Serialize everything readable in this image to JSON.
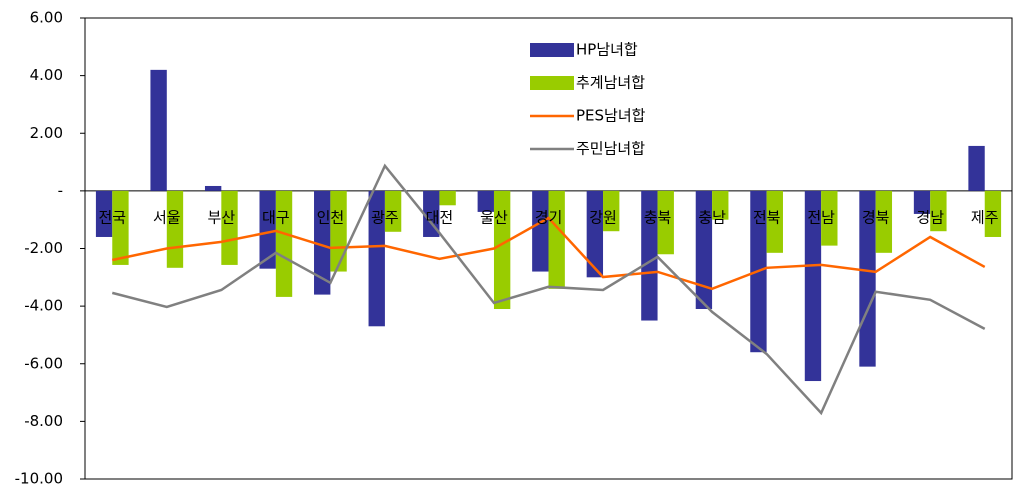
{
  "chart_data": {
    "type": "bar",
    "categories": [
      "전국",
      "서울",
      "부산",
      "대구",
      "인천",
      "광주",
      "대전",
      "울산",
      "경기",
      "강원",
      "충북",
      "충남",
      "전북",
      "전남",
      "경북",
      "경남",
      "제주"
    ],
    "series": [
      {
        "name": "HP남녀합",
        "type": "bar",
        "color": "#333399",
        "values": [
          -1.6,
          4.2,
          0.17,
          -2.7,
          -3.6,
          -4.7,
          -1.6,
          -0.73,
          -2.8,
          -3.0,
          -4.5,
          -4.1,
          -5.6,
          -6.6,
          -6.1,
          -0.8,
          1.56
        ]
      },
      {
        "name": "추계남녀합",
        "type": "bar",
        "color": "#99cc00",
        "values": [
          -2.57,
          -2.67,
          -2.57,
          -3.68,
          -2.8,
          -1.42,
          -0.5,
          -4.1,
          -3.4,
          -1.4,
          -2.2,
          -1.0,
          -2.15,
          -1.9,
          -2.15,
          -1.4,
          -1.6
        ]
      },
      {
        "name": "PES남녀합",
        "type": "line",
        "color": "#ff6600",
        "values": [
          -2.4,
          -2.0,
          -1.77,
          -1.39,
          -1.98,
          -1.91,
          -2.36,
          -2.0,
          -0.94,
          -2.99,
          -2.81,
          -3.4,
          -2.67,
          -2.57,
          -2.81,
          -1.6,
          -2.64
        ]
      },
      {
        "name": "주민남녀합",
        "type": "line",
        "color": "#808080",
        "values": [
          -3.54,
          -4.03,
          -3.44,
          -2.15,
          -3.19,
          0.87,
          -1.46,
          -3.89,
          -3.33,
          -3.44,
          -2.29,
          -4.2,
          -5.66,
          -7.71,
          -3.5,
          -3.78,
          -4.79
        ]
      }
    ],
    "ylim": [
      -10,
      6
    ],
    "yticks": [
      {
        "value": -10,
        "label": "-10.00"
      },
      {
        "value": -8,
        "label": "-8.00"
      },
      {
        "value": -6,
        "label": "-6.00"
      },
      {
        "value": -4,
        "label": "-4.00"
      },
      {
        "value": -2,
        "label": "-2.00"
      },
      {
        "value": 0,
        "label": "-"
      },
      {
        "value": 2,
        "label": "2.00"
      },
      {
        "value": 4,
        "label": "4.00"
      },
      {
        "value": 6,
        "label": "6.00"
      }
    ],
    "legend": "top-center"
  }
}
